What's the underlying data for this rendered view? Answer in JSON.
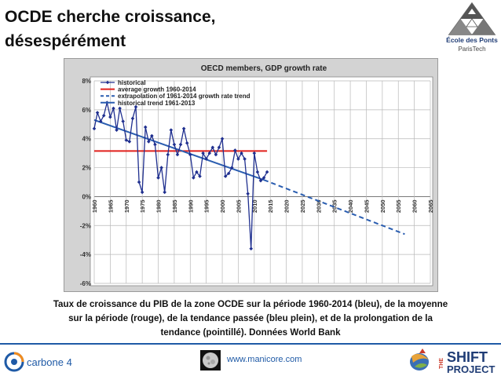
{
  "slide": {
    "title_line1": "OCDE cherche croissance,",
    "title_line2": "désespérément",
    "caption_line1": "Taux de croissance du PIB de la zone OCDE sur la période 1960-2014 (bleu), de la moyenne",
    "caption_line2": "sur la période (rouge), de la tendance passée (bleu plein), et de la prolongation de la",
    "caption_line3": "tendance (pointillé). Données World Bank",
    "url": "www.manicore.com"
  },
  "logos": {
    "ponts_line1": "École des Ponts",
    "ponts_line2": "ParisTech",
    "carbone": "carbone 4",
    "shift_the": "THE",
    "shift_shift": "SHIFT",
    "shift_project": "PROJECT"
  },
  "colors": {
    "historical": "#1f2f8f",
    "average": "#e0201c",
    "trend": "#2a5db0",
    "plot_bg": "#ffffff",
    "frame_bg": "#d3d3d3"
  },
  "chart_data": {
    "type": "line",
    "title": "OECD members, GDP growth rate",
    "xlim": [
      1960,
      2065
    ],
    "ylim": [
      -6,
      8
    ],
    "x_ticks": [
      "1960",
      "1965",
      "1970",
      "1975",
      "1980",
      "1985",
      "1990",
      "1995",
      "2000",
      "2005",
      "2010",
      "2015",
      "2020",
      "2025",
      "2030",
      "2035",
      "2040",
      "2045",
      "2050",
      "2055",
      "2060",
      "2065"
    ],
    "y_ticks": [
      "8%",
      "6%",
      "4%",
      "2%",
      "0%",
      "-2%",
      "-4%",
      "-6%"
    ],
    "y_tick_values": [
      8,
      6,
      4,
      2,
      0,
      -2,
      -4,
      -6
    ],
    "grid": true,
    "legend_position": "top-left",
    "series": [
      {
        "name": "historical",
        "style": "line-markers",
        "x": [
          1960,
          1961,
          1962,
          1963,
          1964,
          1965,
          1966,
          1967,
          1968,
          1969,
          1970,
          1971,
          1972,
          1973,
          1974,
          1975,
          1976,
          1977,
          1978,
          1979,
          1980,
          1981,
          1982,
          1983,
          1984,
          1985,
          1986,
          1987,
          1988,
          1989,
          1990,
          1991,
          1992,
          1993,
          1994,
          1995,
          1996,
          1997,
          1998,
          1999,
          2000,
          2001,
          2002,
          2003,
          2004,
          2005,
          2006,
          2007,
          2008,
          2009,
          2010,
          2011,
          2012,
          2013,
          2014
        ],
        "y": [
          4.7,
          5.8,
          5.2,
          5.6,
          6.5,
          5.5,
          6.1,
          4.6,
          6.1,
          5.2,
          3.9,
          3.8,
          5.4,
          6.2,
          1.0,
          0.3,
          4.8,
          3.8,
          4.2,
          3.6,
          1.3,
          2.0,
          0.3,
          2.9,
          4.6,
          3.6,
          2.9,
          3.6,
          4.7,
          3.7,
          2.9,
          1.3,
          1.7,
          1.4,
          3.0,
          2.6,
          3.0,
          3.4,
          2.9,
          3.4,
          4.0,
          1.4,
          1.6,
          2.0,
          3.2,
          2.6,
          3.0,
          2.6,
          0.2,
          -3.6,
          3.0,
          1.7,
          1.1,
          1.3,
          1.7
        ]
      },
      {
        "name": "average growth 1960-2014",
        "style": "solid",
        "x": [
          1960,
          2014
        ],
        "y": [
          3.15,
          3.15
        ]
      },
      {
        "name": "extrapolation of 1961-2014 growth rate trend",
        "style": "dashed",
        "x": [
          2013,
          2057
        ],
        "y": [
          1.15,
          -2.6
        ]
      },
      {
        "name": "historical trend 1961-2013",
        "style": "solid",
        "x": [
          1960,
          2013
        ],
        "y": [
          5.3,
          1.15
        ]
      }
    ]
  }
}
